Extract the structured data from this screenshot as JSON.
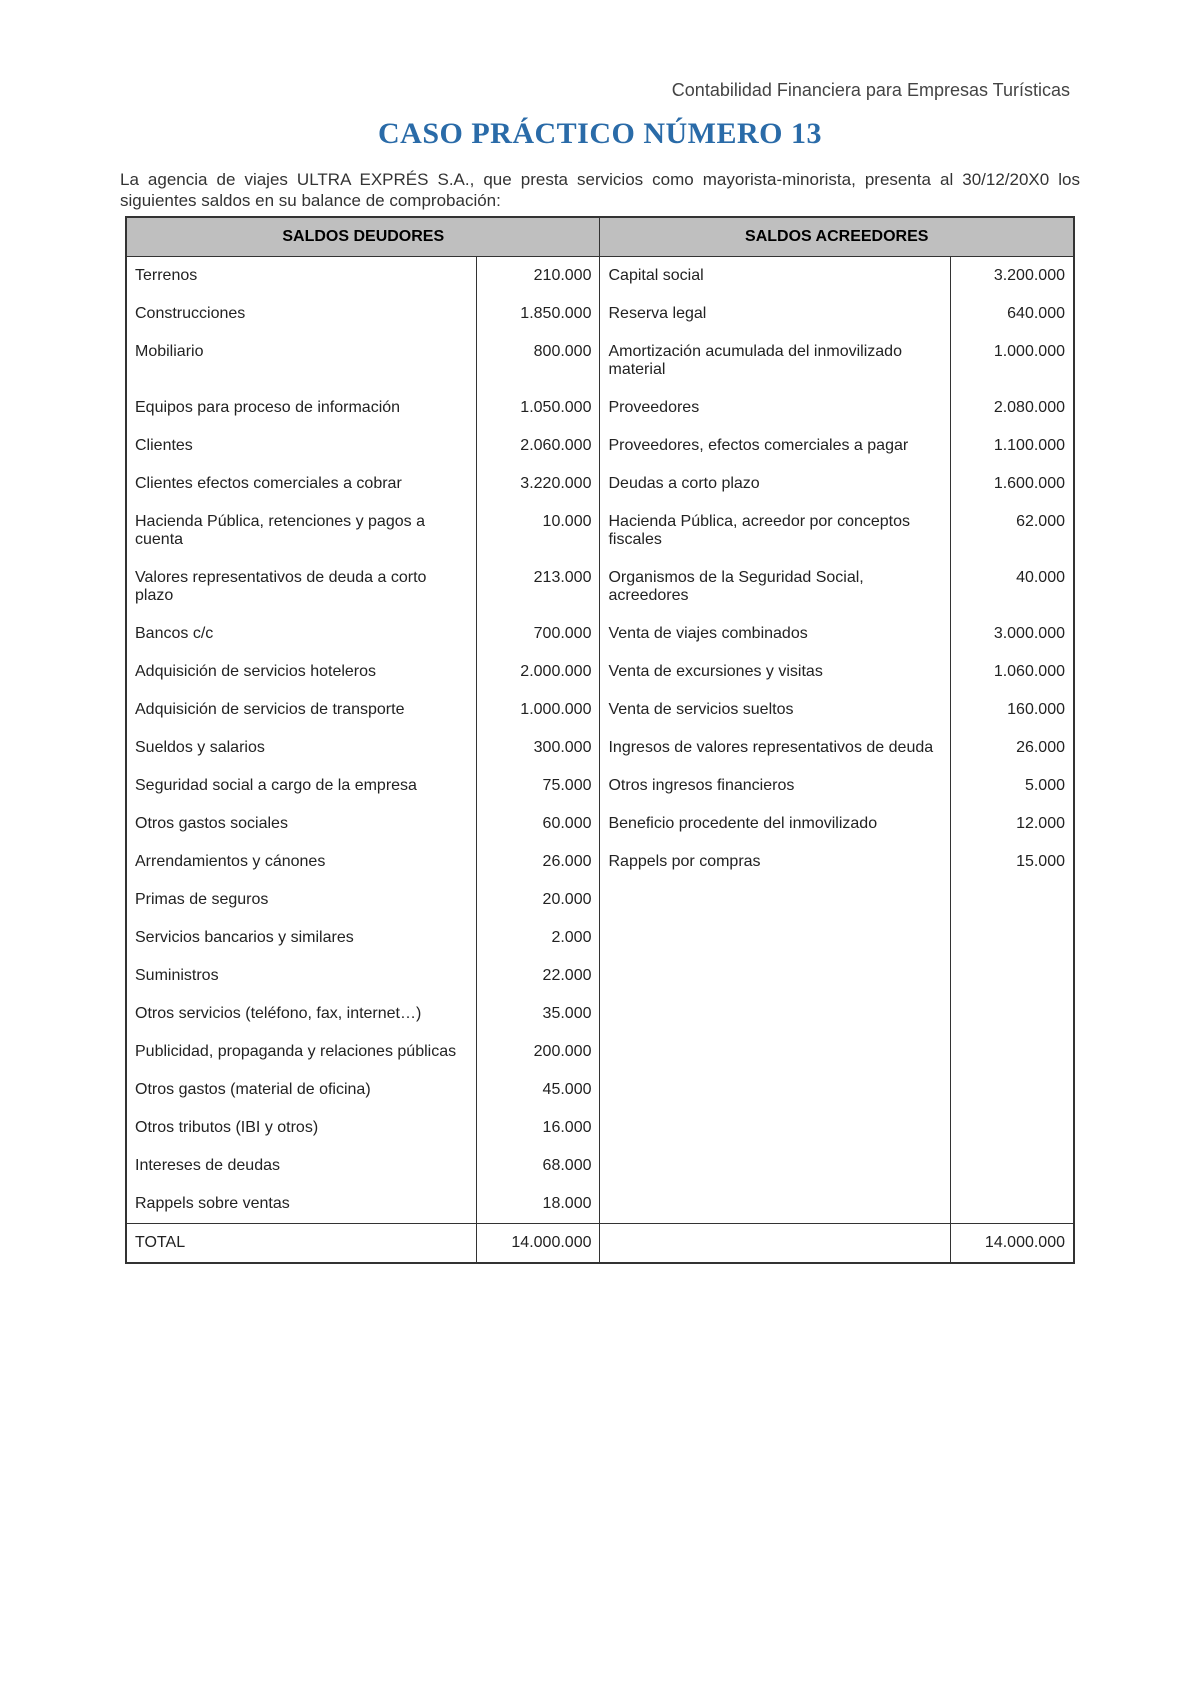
{
  "header": "Contabilidad Financiera para Empresas Turísticas",
  "title": "CASO PRÁCTICO NÚMERO 13",
  "title_color": "#2a6ba8",
  "intro": "La agencia de viajes ULTRA EXPRÉS S.A., que presta servicios como mayorista-minorista, presenta al 30/12/20X0 los siguientes saldos en su balance de comprobación:",
  "table": {
    "header_bg": "#bfbfbf",
    "border_color": "#333333",
    "text_color": "#222222",
    "font_size_pt": 12,
    "columns": {
      "left_header": "SALDOS DEUDORES",
      "right_header": "SALDOS ACREEDORES"
    },
    "rows": [
      {
        "dl": "Terrenos",
        "dv": "210.000",
        "cl": "Capital social",
        "cv": "3.200.000"
      },
      {
        "dl": "Construcciones",
        "dv": "1.850.000",
        "cl": "Reserva legal",
        "cv": "640.000"
      },
      {
        "dl": "Mobiliario",
        "dv": "800.000",
        "cl": "Amortización acumulada del inmovilizado material",
        "cv": "1.000.000"
      },
      {
        "dl": "Equipos para proceso de información",
        "dv": "1.050.000",
        "cl": "Proveedores",
        "cv": "2.080.000"
      },
      {
        "dl": "Clientes",
        "dv": "2.060.000",
        "cl": "Proveedores, efectos comerciales a pagar",
        "cv": "1.100.000"
      },
      {
        "dl": "Clientes efectos comerciales a cobrar",
        "dv": "3.220.000",
        "cl": "Deudas a corto plazo",
        "cv": "1.600.000"
      },
      {
        "dl": "Hacienda Pública, retenciones y pagos a cuenta",
        "dv": "10.000",
        "cl": "Hacienda Pública, acreedor por conceptos fiscales",
        "cv": "62.000"
      },
      {
        "dl": "Valores representativos de deuda a corto plazo",
        "dv": "213.000",
        "cl": "Organismos de la Seguridad Social, acreedores",
        "cv": "40.000"
      },
      {
        "dl": "Bancos c/c",
        "dv": "700.000",
        "cl": "Venta de viajes combinados",
        "cv": "3.000.000"
      },
      {
        "dl": "Adquisición de servicios hoteleros",
        "dv": "2.000.000",
        "cl": "Venta de excursiones y visitas",
        "cv": "1.060.000"
      },
      {
        "dl": "Adquisición de servicios de transporte",
        "dv": "1.000.000",
        "cl": "Venta de servicios sueltos",
        "cv": "160.000"
      },
      {
        "dl": "Sueldos y salarios",
        "dv": "300.000",
        "cl": "Ingresos de valores representativos de deuda",
        "cv": "26.000"
      },
      {
        "dl": "Seguridad social a cargo de la empresa",
        "dv": "75.000",
        "cl": "Otros ingresos financieros",
        "cv": "5.000"
      },
      {
        "dl": "Otros gastos sociales",
        "dv": "60.000",
        "cl": "Beneficio procedente del inmovilizado",
        "cv": "12.000"
      },
      {
        "dl": "Arrendamientos y cánones",
        "dv": "26.000",
        "cl": "Rappels por compras",
        "cv": "15.000"
      },
      {
        "dl": "Primas de seguros",
        "dv": "20.000",
        "cl": "",
        "cv": ""
      },
      {
        "dl": "Servicios bancarios y similares",
        "dv": "2.000",
        "cl": "",
        "cv": ""
      },
      {
        "dl": "Suministros",
        "dv": "22.000",
        "cl": "",
        "cv": ""
      },
      {
        "dl": "Otros servicios (teléfono, fax, internet…)",
        "dv": "35.000",
        "cl": "",
        "cv": ""
      },
      {
        "dl": "Publicidad, propaganda y relaciones públicas",
        "dv": "200.000",
        "cl": "",
        "cv": ""
      },
      {
        "dl": "Otros gastos (material de oficina)",
        "dv": "45.000",
        "cl": "",
        "cv": ""
      },
      {
        "dl": "Otros tributos (IBI y otros)",
        "dv": "16.000",
        "cl": "",
        "cv": ""
      },
      {
        "dl": "Intereses de deudas",
        "dv": "68.000",
        "cl": "",
        "cv": ""
      },
      {
        "dl": "Rappels sobre ventas",
        "dv": "18.000",
        "cl": "",
        "cv": ""
      }
    ],
    "total": {
      "label": "TOTAL",
      "dv": "14.000.000",
      "cv": "14.000.000"
    }
  }
}
